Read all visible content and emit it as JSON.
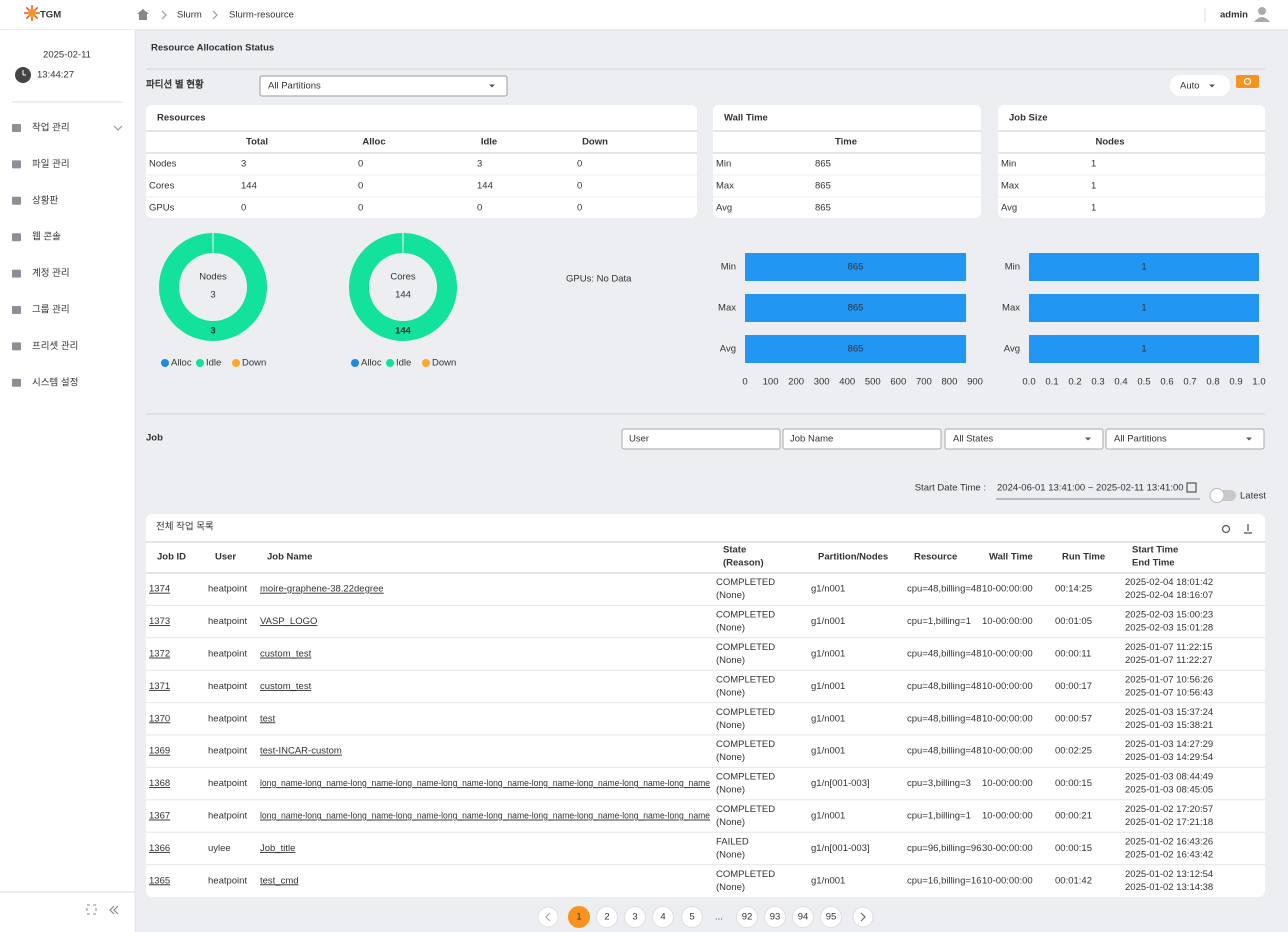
{
  "header": {
    "logo": "TGM",
    "breadcrumb": [
      "Slurm",
      "Slurm-resource"
    ],
    "user": "admin"
  },
  "sidebar": {
    "date": "2025-02-11",
    "time": "13:44:27",
    "menu": [
      "작업 관리",
      "파일 관리",
      "상황판",
      "웹 콘솔",
      "계정 관리",
      "그룹 관리",
      "프리셋 관리",
      "시스템 설정"
    ]
  },
  "page_title": "Resource Allocation Status",
  "partition": {
    "title": "파티션 별 현황",
    "select": "All Partitions",
    "refresh_mode": "Auto"
  },
  "resources": {
    "title": "Resources",
    "columns": [
      "Total",
      "Alloc",
      "Idle",
      "Down"
    ],
    "rows": [
      [
        "Nodes",
        3,
        0,
        3,
        0
      ],
      [
        "Cores",
        144,
        0,
        144,
        0
      ],
      [
        "GPUs",
        0,
        0,
        0,
        0
      ]
    ]
  },
  "wall_time": {
    "title": "Wall Time",
    "columns": [
      "Time"
    ],
    "rows": [
      [
        "Min",
        865
      ],
      [
        "Max",
        865
      ],
      [
        "Avg",
        865
      ]
    ]
  },
  "job_size": {
    "title": "Job Size",
    "columns": [
      "Nodes"
    ],
    "rows": [
      [
        "Min",
        1
      ],
      [
        "Max",
        1
      ],
      [
        "Avg",
        1
      ]
    ]
  },
  "donuts": [
    {
      "type": "pie",
      "center_label": "Nodes",
      "center_value": 3,
      "categories": [
        "Alloc",
        "Idle",
        "Down"
      ],
      "colors": [
        "#1e88e5",
        "#12e29b",
        "#ffa726"
      ],
      "values": [
        0,
        3,
        0
      ]
    },
    {
      "type": "pie",
      "center_label": "Cores",
      "center_value": 144,
      "categories": [
        "Alloc",
        "Idle",
        "Down"
      ],
      "colors": [
        "#1e88e5",
        "#12e29b",
        "#ffa726"
      ],
      "values": [
        0,
        144,
        0
      ]
    }
  ],
  "gpu_chart": {
    "note": "GPUs: No Data"
  },
  "bar_charts": [
    {
      "type": "bar",
      "orientation": "horizontal",
      "categories": [
        "Min",
        "Max",
        "Avg"
      ],
      "values": [
        865,
        865,
        865
      ],
      "color": "#2196f3",
      "xlim": [
        0,
        900
      ],
      "xticks": [
        0,
        100,
        200,
        300,
        400,
        500,
        600,
        700,
        800,
        900
      ]
    },
    {
      "type": "bar",
      "orientation": "horizontal",
      "categories": [
        "Min",
        "Max",
        "Avg"
      ],
      "values": [
        1,
        1,
        1
      ],
      "color": "#2196f3",
      "xlim": [
        0,
        1
      ],
      "xticks": [
        {
          "value": 0,
          "label": "0.0"
        },
        {
          "value": 0.1,
          "label": "0.1"
        },
        {
          "value": 0.2,
          "label": "0.2"
        },
        {
          "value": 0.3,
          "label": "0.3"
        },
        {
          "value": 0.4,
          "label": "0.4"
        },
        {
          "value": 0.5,
          "label": "0.5"
        },
        {
          "value": 0.6,
          "label": "0.6"
        },
        {
          "value": 0.7,
          "label": "0.7"
        },
        {
          "value": 0.8,
          "label": "0.8"
        },
        {
          "value": 0.9,
          "label": "0.9"
        },
        {
          "value": 1,
          "label": "1.0"
        }
      ]
    }
  ],
  "job": {
    "title": "Job",
    "filters": {
      "user": "User",
      "job_name": "Job Name",
      "state": "All States",
      "partition": "All Partitions"
    },
    "date_label": "Start Date Time :",
    "date_range": "2024-06-01 13:41:00 ~ 2025-02-11 13:41:00",
    "latest": "Latest"
  },
  "job_table": {
    "title": "전체 작업 목록",
    "columns": [
      "Job ID",
      "User",
      "Job Name",
      [
        "State",
        "(Reason)"
      ],
      "Partition/Nodes",
      "Resource",
      "Wall Time",
      "Run Time",
      [
        "Start Time",
        "End Time"
      ]
    ],
    "rows": [
      [
        1374,
        "heatpoint",
        "moire-graphene-38.22degree",
        "COMPLETED",
        "(None)",
        "g1/n001",
        "cpu=48,billing=48",
        "10-00:00:00",
        "00:14:25",
        "2025-02-04 18:01:42",
        "2025-02-04 18:16:07"
      ],
      [
        1373,
        "heatpoint",
        "VASP_LOGO",
        "COMPLETED",
        "(None)",
        "g1/n001",
        "cpu=1,billing=1",
        "10-00:00:00",
        "00:01:05",
        "2025-02-03 15:00:23",
        "2025-02-03 15:01:28"
      ],
      [
        1372,
        "heatpoint",
        "custom_test",
        "COMPLETED",
        "(None)",
        "g1/n001",
        "cpu=48,billing=48",
        "10-00:00:00",
        "00:00:11",
        "2025-01-07 11:22:15",
        "2025-01-07 11:22:27"
      ],
      [
        1371,
        "heatpoint",
        "custom_test",
        "COMPLETED",
        "(None)",
        "g1/n001",
        "cpu=48,billing=48",
        "10-00:00:00",
        "00:00:17",
        "2025-01-07 10:56:26",
        "2025-01-07 10:56:43"
      ],
      [
        1370,
        "heatpoint",
        "test",
        "COMPLETED",
        "(None)",
        "g1/n001",
        "cpu=48,billing=48",
        "10-00:00:00",
        "00:00:57",
        "2025-01-03 15:37:24",
        "2025-01-03 15:38:21"
      ],
      [
        1369,
        "heatpoint",
        "test-INCAR-custom",
        "COMPLETED",
        "(None)",
        "g1/n001",
        "cpu=48,billing=48",
        "10-00:00:00",
        "00:02:25",
        "2025-01-03 14:27:29",
        "2025-01-03 14:29:54"
      ],
      [
        1368,
        "heatpoint",
        "long_name-long_name-long_name-long_name-long_name-long_name-long_name-long_name-long_name-long_name",
        "COMPLETED",
        "(None)",
        "g1/n[001-003]",
        "cpu=3,billing=3",
        "10-00:00:00",
        "00:00:15",
        "2025-01-03 08:44:49",
        "2025-01-03 08:45:05"
      ],
      [
        1367,
        "heatpoint",
        "long_name-long_name-long_name-long_name-long_name-long_name-long_name-long_name-long_name-long_name",
        "COMPLETED",
        "(None)",
        "g1/n001",
        "cpu=1,billing=1",
        "10-00:00:00",
        "00:00:21",
        "2025-01-02 17:20:57",
        "2025-01-02 17:21:18"
      ],
      [
        1366,
        "uylee",
        "Job_title",
        "FAILED",
        "(None)",
        "g1/n[001-003]",
        "cpu=96,billing=96",
        "30-00:00:00",
        "00:00:15",
        "2025-01-02 16:43:26",
        "2025-01-02 16:43:42"
      ],
      [
        1365,
        "heatpoint",
        "test_cmd",
        "COMPLETED",
        "(None)",
        "g1/n001",
        "cpu=16,billing=16",
        "10-00:00:00",
        "00:01:42",
        "2025-01-02 13:12:54",
        "2025-01-02 13:14:38"
      ]
    ]
  },
  "pagination": {
    "pages": [
      1,
      2,
      3,
      4,
      5,
      "...",
      92,
      93,
      94,
      95
    ],
    "current": 1
  }
}
